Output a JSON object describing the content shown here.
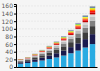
{
  "chart_data": {
    "type": "bar",
    "stacked": true,
    "grid": true,
    "tick_labels": "y",
    "categories": [
      null,
      null,
      null,
      null,
      null,
      null,
      null,
      null,
      null,
      null,
      null
    ],
    "ylim": [
      0,
      165
    ],
    "yticks": [
      0,
      20,
      40,
      60,
      80,
      100,
      120,
      140,
      160
    ],
    "series": [
      {
        "color": "#29abe2",
        "values": [
          8.5,
          10.5,
          13.5,
          17,
          21,
          25,
          30,
          36,
          43,
          51,
          60
        ]
      },
      {
        "color": "#1a1a4e",
        "values": [
          3.5,
          4.5,
          6,
          7.5,
          9,
          11,
          13,
          16,
          19,
          22,
          26
        ]
      },
      {
        "color": "#3d3d3d",
        "values": [
          2.5,
          3,
          4.5,
          6,
          7.5,
          9,
          11,
          13,
          15.5,
          18,
          21
        ]
      },
      {
        "color": "#7f7f7f",
        "values": [
          1.8,
          2.2,
          3,
          4,
          5,
          6,
          7.5,
          9,
          10.5,
          12,
          14
        ]
      },
      {
        "color": "#bfbfbf",
        "values": [
          1.2,
          1.5,
          2,
          2.8,
          3.5,
          4.2,
          5,
          6,
          7.2,
          8.5,
          10
        ]
      },
      {
        "color": "#d9d9d9",
        "values": [
          0.8,
          1,
          1.4,
          1.8,
          2.3,
          2.8,
          3.3,
          4,
          4.8,
          5.7,
          6.8
        ]
      },
      {
        "color": "#c00000",
        "values": [
          0.6,
          0.7,
          1,
          1.3,
          1.6,
          2,
          2.5,
          3,
          3.5,
          4.2,
          5
        ]
      },
      {
        "color": "#ff0000",
        "values": [
          0.4,
          0.5,
          0.7,
          0.9,
          1.2,
          1.5,
          1.8,
          2.2,
          2.6,
          3.1,
          3.7
        ]
      },
      {
        "color": "#ff6600",
        "values": [
          0.35,
          0.45,
          0.6,
          0.8,
          1.0,
          1.2,
          1.5,
          1.8,
          2.1,
          2.5,
          3.0
        ]
      },
      {
        "color": "#ffc000",
        "values": [
          0.3,
          0.35,
          0.5,
          0.65,
          0.8,
          1.0,
          1.2,
          1.5,
          1.8,
          2.1,
          2.5
        ]
      },
      {
        "color": "#ffff00",
        "values": [
          0.25,
          0.3,
          0.4,
          0.5,
          0.65,
          0.8,
          1.0,
          1.2,
          1.4,
          1.7,
          2.0
        ]
      },
      {
        "color": "#00b050",
        "values": [
          0.2,
          0.25,
          0.35,
          0.45,
          0.55,
          0.7,
          0.85,
          1.0,
          1.2,
          1.4,
          1.7
        ]
      },
      {
        "color": "#7030a0",
        "values": [
          0.15,
          0.2,
          0.25,
          0.35,
          0.45,
          0.55,
          0.65,
          0.8,
          0.95,
          1.1,
          1.3
        ]
      },
      {
        "color": "#00b0f0",
        "values": [
          0.12,
          0.15,
          0.2,
          0.28,
          0.35,
          0.44,
          0.53,
          0.65,
          0.78,
          0.92,
          1.1
        ]
      },
      {
        "color": "#ff69b4",
        "values": [
          0.1,
          0.12,
          0.17,
          0.22,
          0.28,
          0.35,
          0.43,
          0.52,
          0.63,
          0.75,
          0.9
        ]
      },
      {
        "color": "#70ad47",
        "values": [
          0.08,
          0.1,
          0.13,
          0.17,
          0.22,
          0.27,
          0.33,
          0.4,
          0.48,
          0.57,
          0.68
        ]
      }
    ]
  }
}
